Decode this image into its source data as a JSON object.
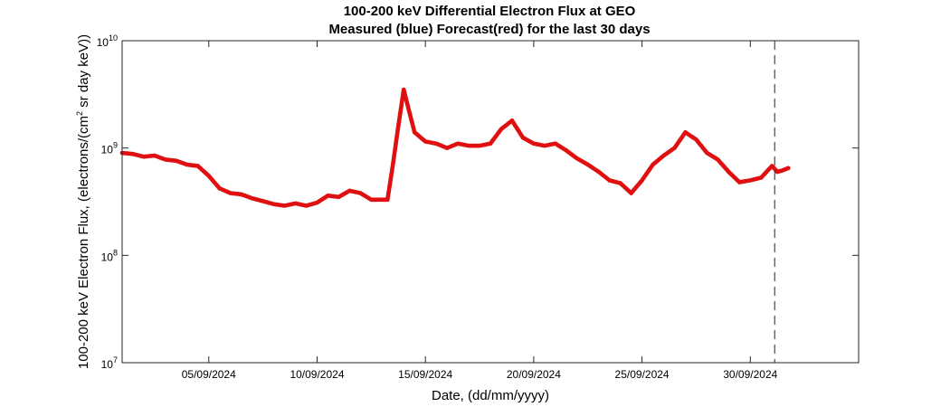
{
  "chart_data": {
    "type": "scatter",
    "title": "100-200 keV Differential Electron Flux at GEO",
    "subtitle": "Measured (blue) Forecast(red) for the last 30 days",
    "xlabel": "Date, (dd/mm/yyyy)",
    "ylabel": {
      "pre": "100-200 keV Electron Flux, (electrons/(cm",
      "sup": "2",
      "post": " sr day keV))"
    },
    "yscale": "log",
    "ylim": [
      10000000,
      10000000000
    ],
    "yticks": [
      {
        "value": 10000000,
        "base": "10",
        "exp": "7"
      },
      {
        "value": 100000000,
        "base": "10",
        "exp": "8"
      },
      {
        "value": 1000000000,
        "base": "10",
        "exp": "9"
      },
      {
        "value": 10000000000,
        "base": "10",
        "exp": "10"
      }
    ],
    "xlim": [
      "2024-09-01T00:00",
      "2024-10-05T00:00"
    ],
    "xticks": [
      {
        "date": "2024-09-05",
        "label": "05/09/2024"
      },
      {
        "date": "2024-09-10",
        "label": "10/09/2024"
      },
      {
        "date": "2024-09-15",
        "label": "15/09/2024"
      },
      {
        "date": "2024-09-20",
        "label": "20/09/2024"
      },
      {
        "date": "2024-09-25",
        "label": "25/09/2024"
      },
      {
        "date": "2024-09-30",
        "label": "30/09/2024"
      }
    ],
    "vline_date": "2024-10-01T03:00",
    "grid": false,
    "series": [
      {
        "color": "#e01010",
        "points": [
          [
            "2024-09-01T00:00",
            900000000.0
          ],
          [
            "2024-09-01T12:00",
            880000000.0
          ],
          [
            "2024-09-02T00:00",
            830000000.0
          ],
          [
            "2024-09-02T12:00",
            850000000.0
          ],
          [
            "2024-09-03T00:00",
            780000000.0
          ],
          [
            "2024-09-03T12:00",
            760000000.0
          ],
          [
            "2024-09-04T00:00",
            700000000.0
          ],
          [
            "2024-09-04T12:00",
            680000000.0
          ],
          [
            "2024-09-05T00:00",
            550000000.0
          ],
          [
            "2024-09-05T12:00",
            420000000.0
          ],
          [
            "2024-09-06T00:00",
            380000000.0
          ],
          [
            "2024-09-06T12:00",
            370000000.0
          ],
          [
            "2024-09-07T00:00",
            340000000.0
          ],
          [
            "2024-09-07T12:00",
            320000000.0
          ],
          [
            "2024-09-08T00:00",
            300000000.0
          ],
          [
            "2024-09-08T12:00",
            290000000.0
          ],
          [
            "2024-09-09T00:00",
            305000000.0
          ],
          [
            "2024-09-09T12:00",
            290000000.0
          ],
          [
            "2024-09-10T00:00",
            310000000.0
          ],
          [
            "2024-09-10T12:00",
            360000000.0
          ],
          [
            "2024-09-11T00:00",
            350000000.0
          ],
          [
            "2024-09-11T12:00",
            400000000.0
          ],
          [
            "2024-09-12T00:00",
            380000000.0
          ],
          [
            "2024-09-12T12:00",
            330000000.0
          ],
          [
            "2024-09-13T00:00",
            330000000.0
          ],
          [
            "2024-09-13T06:00",
            330000000.0
          ],
          [
            "2024-09-13T12:00",
            700000000.0
          ],
          [
            "2024-09-13T18:00",
            1600000000.0
          ],
          [
            "2024-09-14T00:00",
            3500000000.0
          ],
          [
            "2024-09-14T06:00",
            2200000000.0
          ],
          [
            "2024-09-14T12:00",
            1400000000.0
          ],
          [
            "2024-09-15T00:00",
            1150000000.0
          ],
          [
            "2024-09-15T12:00",
            1100000000.0
          ],
          [
            "2024-09-16T00:00",
            1000000000.0
          ],
          [
            "2024-09-16T12:00",
            1100000000.0
          ],
          [
            "2024-09-17T00:00",
            1050000000.0
          ],
          [
            "2024-09-17T12:00",
            1050000000.0
          ],
          [
            "2024-09-18T00:00",
            1100000000.0
          ],
          [
            "2024-09-18T12:00",
            1500000000.0
          ],
          [
            "2024-09-19T00:00",
            1800000000.0
          ],
          [
            "2024-09-19T12:00",
            1250000000.0
          ],
          [
            "2024-09-20T00:00",
            1100000000.0
          ],
          [
            "2024-09-20T12:00",
            1050000000.0
          ],
          [
            "2024-09-21T00:00",
            1100000000.0
          ],
          [
            "2024-09-21T12:00",
            950000000.0
          ],
          [
            "2024-09-22T00:00",
            800000000.0
          ],
          [
            "2024-09-22T12:00",
            700000000.0
          ],
          [
            "2024-09-23T00:00",
            600000000.0
          ],
          [
            "2024-09-23T12:00",
            500000000.0
          ],
          [
            "2024-09-24T00:00",
            470000000.0
          ],
          [
            "2024-09-24T12:00",
            380000000.0
          ],
          [
            "2024-09-25T00:00",
            500000000.0
          ],
          [
            "2024-09-25T12:00",
            700000000.0
          ],
          [
            "2024-09-26T00:00",
            850000000.0
          ],
          [
            "2024-09-26T12:00",
            1000000000.0
          ],
          [
            "2024-09-27T00:00",
            1400000000.0
          ],
          [
            "2024-09-27T12:00",
            1200000000.0
          ],
          [
            "2024-09-28T00:00",
            900000000.0
          ],
          [
            "2024-09-28T12:00",
            780000000.0
          ],
          [
            "2024-09-29T00:00",
            600000000.0
          ],
          [
            "2024-09-29T12:00",
            480000000.0
          ],
          [
            "2024-09-30T00:00",
            500000000.0
          ],
          [
            "2024-09-30T12:00",
            530000000.0
          ],
          [
            "2024-10-01T00:00",
            680000000.0
          ],
          [
            "2024-10-01T06:00",
            600000000.0
          ],
          [
            "2024-10-01T12:00",
            620000000.0
          ],
          [
            "2024-10-01T18:00",
            650000000.0
          ]
        ]
      }
    ]
  }
}
